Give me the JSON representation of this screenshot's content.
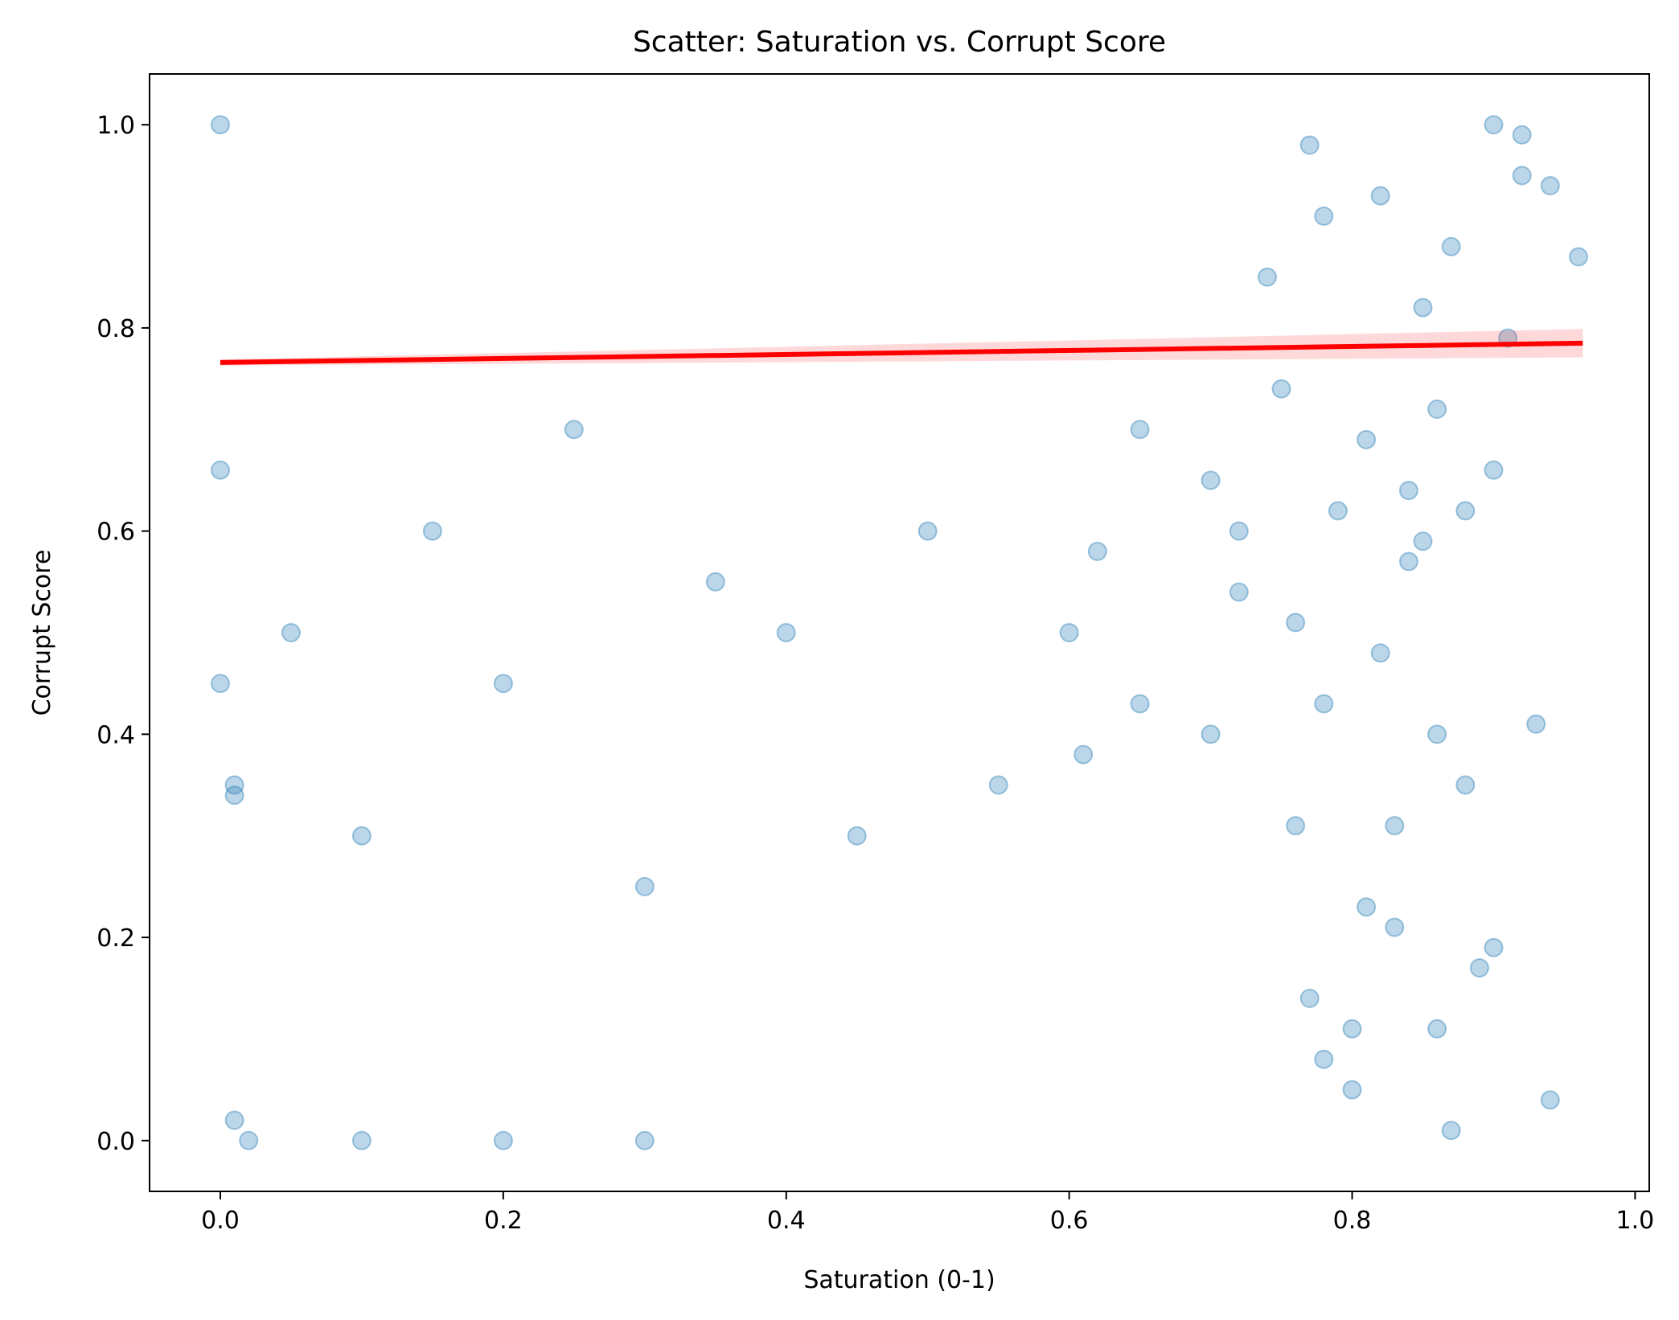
{
  "chart_data": {
    "type": "scatter",
    "title": "Scatter: Saturation vs. Corrupt Score",
    "xlabel": "Saturation (0-1)",
    "ylabel": "Corrupt Score",
    "xlim": [
      -0.05,
      1.01
    ],
    "ylim": [
      -0.05,
      1.05
    ],
    "xticks": [
      0.0,
      0.2,
      0.4,
      0.6,
      0.8,
      1.0
    ],
    "xtick_labels": [
      "0.0",
      "0.2",
      "0.4",
      "0.6",
      "0.8",
      "1.0"
    ],
    "yticks": [
      0.0,
      0.2,
      0.4,
      0.6,
      0.8,
      1.0
    ],
    "ytick_labels": [
      "0.0",
      "0.2",
      "0.4",
      "0.6",
      "0.8",
      "1.0"
    ],
    "grid": false,
    "legend": "none",
    "point_color": "#1f77b4",
    "point_alpha": 0.3,
    "series": [
      {
        "kind": "scatter",
        "points": [
          [
            0.0,
            1.0
          ],
          [
            0.0,
            0.66
          ],
          [
            0.0,
            0.45
          ],
          [
            0.01,
            0.35
          ],
          [
            0.01,
            0.34
          ],
          [
            0.01,
            0.02
          ],
          [
            0.02,
            0.0
          ],
          [
            0.1,
            0.0
          ],
          [
            0.2,
            0.0
          ],
          [
            0.3,
            0.0
          ],
          [
            0.05,
            0.5
          ],
          [
            0.1,
            0.3
          ],
          [
            0.15,
            0.6
          ],
          [
            0.2,
            0.45
          ],
          [
            0.25,
            0.7
          ],
          [
            0.3,
            0.25
          ],
          [
            0.35,
            0.55
          ],
          [
            0.4,
            0.5
          ],
          [
            0.45,
            0.3
          ],
          [
            0.5,
            0.6
          ],
          [
            0.55,
            0.35
          ],
          [
            0.6,
            0.5
          ],
          [
            0.65,
            0.7
          ],
          [
            0.7,
            0.4
          ],
          [
            0.72,
            0.6
          ],
          [
            0.61,
            0.38
          ],
          [
            0.62,
            0.58
          ],
          [
            0.65,
            0.43
          ],
          [
            0.7,
            0.65
          ],
          [
            0.72,
            0.54
          ],
          [
            0.74,
            0.85
          ],
          [
            0.75,
            0.74
          ],
          [
            0.76,
            0.51
          ],
          [
            0.77,
            0.98
          ],
          [
            0.78,
            0.91
          ],
          [
            0.78,
            0.43
          ],
          [
            0.79,
            0.62
          ],
          [
            0.8,
            0.11
          ],
          [
            0.81,
            0.69
          ],
          [
            0.82,
            0.93
          ],
          [
            0.83,
            0.21
          ],
          [
            0.84,
            0.57
          ],
          [
            0.85,
            0.82
          ],
          [
            0.86,
            0.4
          ],
          [
            0.86,
            0.72
          ],
          [
            0.87,
            0.01
          ],
          [
            0.87,
            0.88
          ],
          [
            0.88,
            0.35
          ],
          [
            0.89,
            0.17
          ],
          [
            0.9,
            1.0
          ],
          [
            0.9,
            0.19
          ],
          [
            0.91,
            0.79
          ],
          [
            0.92,
            0.99
          ],
          [
            0.92,
            0.95
          ],
          [
            0.93,
            0.41
          ],
          [
            0.94,
            0.94
          ],
          [
            0.94,
            0.04
          ],
          [
            0.96,
            0.87
          ],
          [
            0.8,
            0.05
          ],
          [
            0.82,
            0.48
          ],
          [
            0.84,
            0.64
          ],
          [
            0.85,
            0.59
          ],
          [
            0.86,
            0.11
          ],
          [
            0.88,
            0.62
          ],
          [
            0.9,
            0.66
          ],
          [
            0.76,
            0.31
          ],
          [
            0.77,
            0.14
          ],
          [
            0.78,
            0.08
          ],
          [
            0.81,
            0.23
          ],
          [
            0.83,
            0.31
          ]
        ]
      },
      {
        "kind": "line",
        "name": "",
        "color": "#ff0000",
        "x": [
          0.0,
          0.963
        ],
        "y": [
          0.766,
          0.785
        ],
        "ci_lower": [
          0.763,
          0.771
        ],
        "ci_upper": [
          0.769,
          0.799
        ]
      }
    ]
  }
}
